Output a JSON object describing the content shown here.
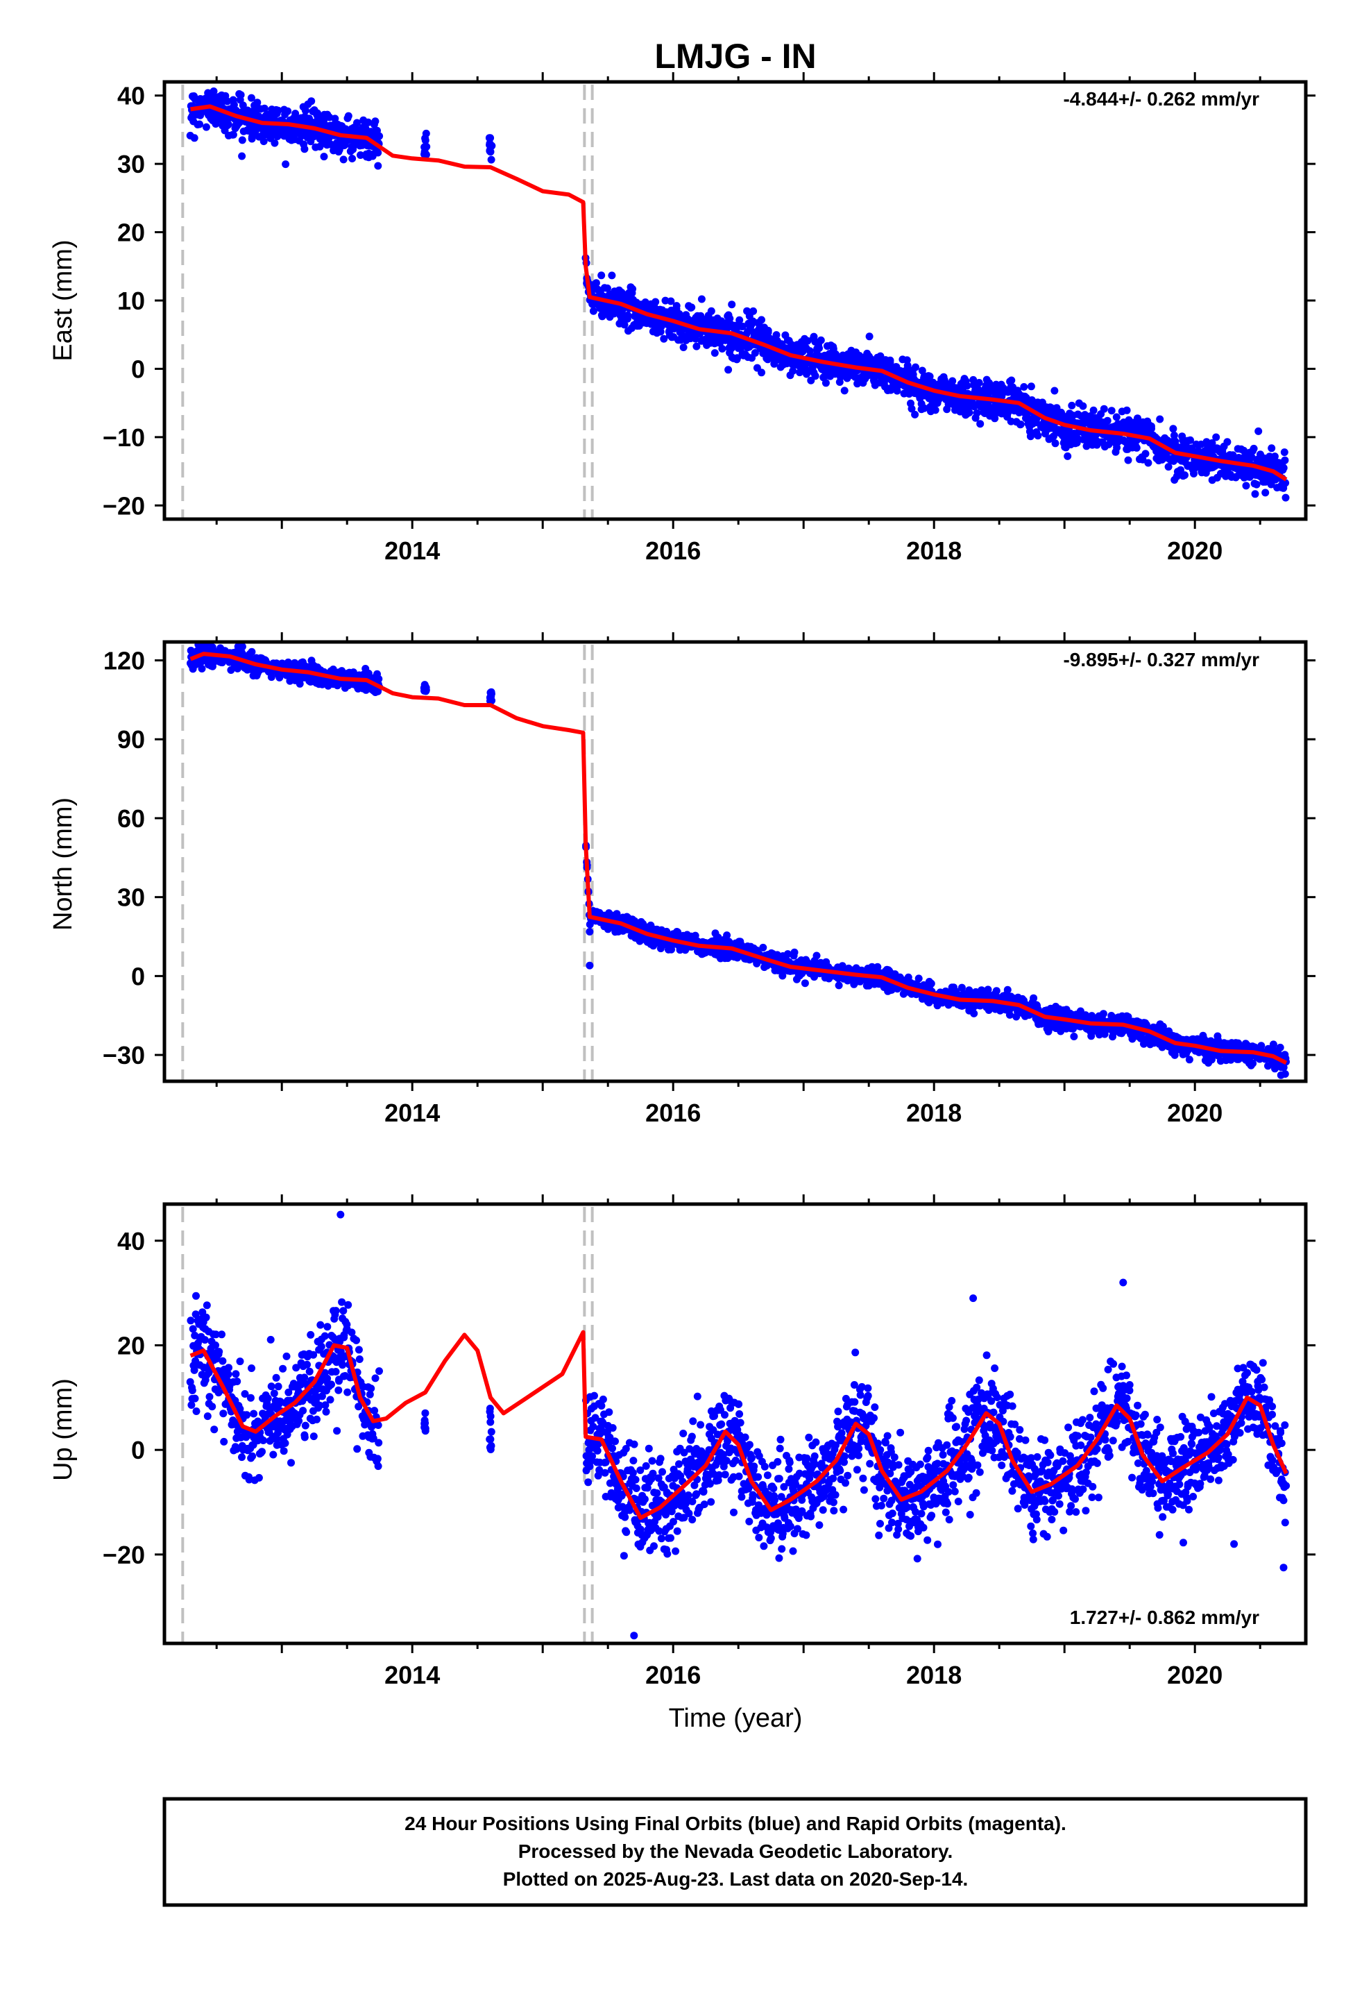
{
  "title": "LMJG - IN",
  "xlabel": "Time (year)",
  "footer": {
    "line1": "24 Hour Positions Using Final Orbits (blue) and Rapid Orbits (magenta).",
    "line2": "Processed by the Nevada Geodetic Laboratory.",
    "line3": "Plotted on 2025-Aug-23. Last data on 2020-Sep-14."
  },
  "colors": {
    "data": "#0000ff",
    "model": "#ff0000",
    "step": "#c0c0c0",
    "frame": "#000000"
  },
  "chart_data": [
    {
      "type": "scatter",
      "component": "east",
      "ylabel": "East (mm)",
      "rate": "-4.844+/- 0.262 mm/yr",
      "rate_position": "top-right",
      "xlim": [
        2012.1,
        2020.85
      ],
      "ylim": [
        -22,
        42
      ],
      "xticks": [
        2014,
        2016,
        2018,
        2020
      ],
      "yticks": [
        -20,
        -10,
        0,
        10,
        20,
        30,
        40
      ],
      "step_lines": [
        2012.24,
        2015.32,
        2015.38
      ],
      "data_segments": [
        {
          "x": [
            2012.3,
            2013.75
          ],
          "noise": 1.4
        },
        {
          "x": [
            2015.33,
            2020.7
          ],
          "noise": 1.4
        }
      ],
      "isolated_clusters": [
        {
          "x": 2014.1,
          "ymin": 31,
          "ymax": 35
        },
        {
          "x": 2014.6,
          "ymin": 30,
          "ymax": 34
        }
      ],
      "model": [
        [
          2012.3,
          38.0
        ],
        [
          2012.45,
          38.4
        ],
        [
          2012.65,
          37.0
        ],
        [
          2012.85,
          36.0
        ],
        [
          2013.05,
          35.8
        ],
        [
          2013.25,
          35.2
        ],
        [
          2013.45,
          34.2
        ],
        [
          2013.65,
          33.8
        ],
        [
          2013.85,
          31.2
        ],
        [
          2014.0,
          30.8
        ],
        [
          2014.2,
          30.5
        ],
        [
          2014.4,
          29.6
        ],
        [
          2014.6,
          29.5
        ],
        [
          2014.8,
          27.8
        ],
        [
          2015.0,
          26.0
        ],
        [
          2015.2,
          25.5
        ],
        [
          2015.31,
          24.4
        ],
        [
          2015.33,
          15.0
        ],
        [
          2015.36,
          10.5
        ],
        [
          2015.6,
          9.5
        ],
        [
          2015.8,
          8.0
        ],
        [
          2016.0,
          7.0
        ],
        [
          2016.2,
          5.8
        ],
        [
          2016.45,
          5.2
        ],
        [
          2016.7,
          3.5
        ],
        [
          2016.9,
          2.0
        ],
        [
          2017.15,
          1.0
        ],
        [
          2017.4,
          0.2
        ],
        [
          2017.6,
          -0.3
        ],
        [
          2017.8,
          -2.0
        ],
        [
          2018.0,
          -3.2
        ],
        [
          2018.2,
          -4.0
        ],
        [
          2018.45,
          -4.5
        ],
        [
          2018.65,
          -5.0
        ],
        [
          2018.85,
          -7.2
        ],
        [
          2019.0,
          -8.2
        ],
        [
          2019.2,
          -9.0
        ],
        [
          2019.45,
          -9.5
        ],
        [
          2019.65,
          -10.2
        ],
        [
          2019.85,
          -12.3
        ],
        [
          2020.0,
          -12.8
        ],
        [
          2020.2,
          -13.5
        ],
        [
          2020.45,
          -14.2
        ],
        [
          2020.6,
          -15.0
        ],
        [
          2020.7,
          -16.2
        ]
      ]
    },
    {
      "type": "scatter",
      "component": "north",
      "ylabel": "North (mm)",
      "rate": "-9.895+/- 0.327 mm/yr",
      "rate_position": "top-right",
      "xlim": [
        2012.1,
        2020.85
      ],
      "ylim": [
        -40,
        127
      ],
      "xticks": [
        2014,
        2016,
        2018,
        2020
      ],
      "yticks": [
        -30,
        0,
        30,
        60,
        90,
        120
      ],
      "step_lines": [
        2012.24,
        2015.32,
        2015.38
      ],
      "data_segments": [
        {
          "x": [
            2012.3,
            2013.75
          ],
          "noise": 1.8
        },
        {
          "x": [
            2015.33,
            2020.7
          ],
          "noise": 1.8
        }
      ],
      "isolated_clusters": [
        {
          "x": 2014.1,
          "ymin": 108,
          "ymax": 111
        },
        {
          "x": 2014.6,
          "ymin": 104,
          "ymax": 108
        }
      ],
      "outliers": [
        [
          2015.36,
          4.0
        ]
      ],
      "model": [
        [
          2012.3,
          120.5
        ],
        [
          2012.4,
          122.5
        ],
        [
          2012.6,
          121.5
        ],
        [
          2012.8,
          118.5
        ],
        [
          2013.0,
          116.5
        ],
        [
          2013.2,
          115.5
        ],
        [
          2013.45,
          113.0
        ],
        [
          2013.65,
          112.5
        ],
        [
          2013.85,
          107.5
        ],
        [
          2014.0,
          106.0
        ],
        [
          2014.2,
          105.5
        ],
        [
          2014.4,
          103.0
        ],
        [
          2014.6,
          103.0
        ],
        [
          2014.8,
          98.0
        ],
        [
          2015.0,
          95.0
        ],
        [
          2015.2,
          93.5
        ],
        [
          2015.31,
          92.5
        ],
        [
          2015.33,
          50.0
        ],
        [
          2015.36,
          22.5
        ],
        [
          2015.6,
          20.0
        ],
        [
          2015.8,
          16.0
        ],
        [
          2016.0,
          13.5
        ],
        [
          2016.2,
          11.5
        ],
        [
          2016.45,
          10.5
        ],
        [
          2016.7,
          6.5
        ],
        [
          2016.9,
          3.5
        ],
        [
          2017.15,
          2.0
        ],
        [
          2017.4,
          0.5
        ],
        [
          2017.6,
          -0.5
        ],
        [
          2017.8,
          -4.5
        ],
        [
          2018.0,
          -7.0
        ],
        [
          2018.2,
          -9.0
        ],
        [
          2018.45,
          -9.5
        ],
        [
          2018.65,
          -11.0
        ],
        [
          2018.85,
          -15.5
        ],
        [
          2019.0,
          -16.5
        ],
        [
          2019.2,
          -18.0
        ],
        [
          2019.45,
          -18.5
        ],
        [
          2019.65,
          -21.0
        ],
        [
          2019.85,
          -25.5
        ],
        [
          2020.0,
          -26.5
        ],
        [
          2020.2,
          -28.5
        ],
        [
          2020.45,
          -29.0
        ],
        [
          2020.6,
          -30.5
        ],
        [
          2020.7,
          -33.0
        ]
      ]
    },
    {
      "type": "scatter",
      "component": "up",
      "ylabel": "Up (mm)",
      "rate": "1.727+/- 0.862 mm/yr",
      "rate_position": "bottom-right",
      "xlim": [
        2012.1,
        2020.85
      ],
      "ylim": [
        -37,
        47
      ],
      "xticks": [
        2014,
        2016,
        2018,
        2020
      ],
      "yticks": [
        -20,
        0,
        20,
        40
      ],
      "step_lines": [
        2012.24,
        2015.32,
        2015.38
      ],
      "data_segments": [
        {
          "x": [
            2012.3,
            2013.75
          ],
          "noise": 4.5
        },
        {
          "x": [
            2015.33,
            2020.7
          ],
          "noise": 4.5
        }
      ],
      "isolated_clusters": [
        {
          "x": 2014.1,
          "ymin": 2,
          "ymax": 8
        },
        {
          "x": 2014.6,
          "ymin": 0,
          "ymax": 10
        }
      ],
      "outliers": [
        [
          2013.45,
          45.0
        ],
        [
          2015.7,
          -35.5
        ],
        [
          2019.45,
          32.0
        ],
        [
          2020.68,
          -22.5
        ],
        [
          2018.3,
          29.0
        ],
        [
          2020.3,
          -18.0
        ]
      ],
      "model": [
        [
          2012.3,
          18.0
        ],
        [
          2012.4,
          19.0
        ],
        [
          2012.55,
          12.0
        ],
        [
          2012.7,
          4.5
        ],
        [
          2012.8,
          3.5
        ],
        [
          2012.95,
          6.5
        ],
        [
          2013.1,
          9.0
        ],
        [
          2013.25,
          13.0
        ],
        [
          2013.4,
          20.0
        ],
        [
          2013.5,
          19.5
        ],
        [
          2013.6,
          10.0
        ],
        [
          2013.7,
          5.5
        ],
        [
          2013.8,
          6.0
        ],
        [
          2013.95,
          9.0
        ],
        [
          2014.1,
          11.0
        ],
        [
          2014.25,
          17.0
        ],
        [
          2014.4,
          22.0
        ],
        [
          2014.5,
          19.0
        ],
        [
          2014.6,
          10.0
        ],
        [
          2014.7,
          7.0
        ],
        [
          2014.85,
          9.5
        ],
        [
          2015.0,
          12.0
        ],
        [
          2015.15,
          14.5
        ],
        [
          2015.31,
          22.5
        ],
        [
          2015.33,
          2.5
        ],
        [
          2015.45,
          2.0
        ],
        [
          2015.6,
          -6.0
        ],
        [
          2015.75,
          -13.0
        ],
        [
          2015.9,
          -11.0
        ],
        [
          2016.1,
          -6.5
        ],
        [
          2016.25,
          -3.0
        ],
        [
          2016.4,
          3.5
        ],
        [
          2016.5,
          1.0
        ],
        [
          2016.6,
          -6.0
        ],
        [
          2016.75,
          -11.5
        ],
        [
          2016.9,
          -9.5
        ],
        [
          2017.1,
          -6.0
        ],
        [
          2017.25,
          -2.0
        ],
        [
          2017.4,
          5.0
        ],
        [
          2017.5,
          3.0
        ],
        [
          2017.6,
          -4.0
        ],
        [
          2017.75,
          -9.5
        ],
        [
          2017.9,
          -8.0
        ],
        [
          2018.1,
          -4.0
        ],
        [
          2018.25,
          1.0
        ],
        [
          2018.4,
          7.0
        ],
        [
          2018.5,
          5.0
        ],
        [
          2018.6,
          -2.0
        ],
        [
          2018.75,
          -8.0
        ],
        [
          2018.9,
          -6.5
        ],
        [
          2019.1,
          -3.0
        ],
        [
          2019.25,
          2.0
        ],
        [
          2019.4,
          8.5
        ],
        [
          2019.5,
          6.0
        ],
        [
          2019.6,
          -1.0
        ],
        [
          2019.75,
          -6.0
        ],
        [
          2019.9,
          -3.5
        ],
        [
          2020.1,
          -0.5
        ],
        [
          2020.25,
          3.0
        ],
        [
          2020.4,
          10.0
        ],
        [
          2020.5,
          8.5
        ],
        [
          2020.6,
          1.0
        ],
        [
          2020.7,
          -4.5
        ]
      ]
    }
  ]
}
